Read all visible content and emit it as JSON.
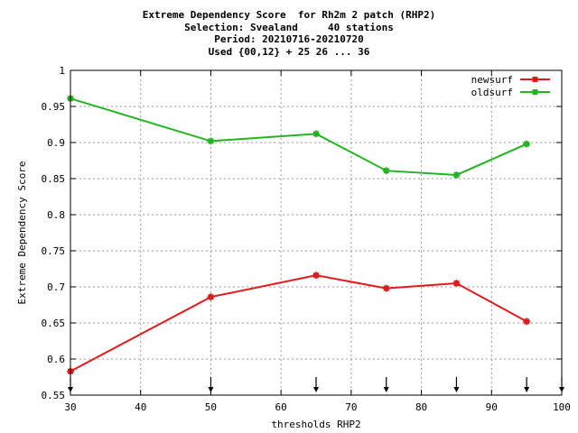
{
  "chart_data": {
    "type": "line",
    "title_lines": [
      "Extreme Dependency Score  for Rh2m 2 patch (RHP2)",
      "Selection: Svealand     40 stations",
      "Period: 20210716-20210720",
      "Used {00,12} + 25 26 ... 36"
    ],
    "xlabel": "thresholds RHP2",
    "ylabel": "Extreme Dependency Score",
    "xlim": [
      30,
      100
    ],
    "ylim": [
      0.55,
      1
    ],
    "xticks": [
      30,
      40,
      50,
      60,
      70,
      80,
      90,
      100
    ],
    "yticks": [
      0.55,
      0.6,
      0.65,
      0.7,
      0.75,
      0.8,
      0.85,
      0.9,
      0.95,
      1
    ],
    "ytick_labels": [
      "0.55",
      "0.6",
      "0.65",
      "0.7",
      "0.75",
      "0.8",
      "0.85",
      "0.9",
      "0.95",
      "1"
    ],
    "grid": true,
    "legend_position": "top-right",
    "arrow_markers_x": [
      30,
      50,
      65,
      75,
      85,
      95,
      100
    ],
    "series": [
      {
        "name": "newsurf",
        "color": "#e31a1c",
        "x": [
          30,
          50,
          65,
          75,
          85,
          95
        ],
        "y": [
          0.583,
          0.686,
          0.716,
          0.698,
          0.705,
          0.652
        ]
      },
      {
        "name": "oldsurf",
        "color": "#22b522",
        "x": [
          30,
          50,
          65,
          75,
          85,
          95
        ],
        "y": [
          0.961,
          0.902,
          0.912,
          0.861,
          0.855,
          0.898
        ]
      }
    ]
  }
}
